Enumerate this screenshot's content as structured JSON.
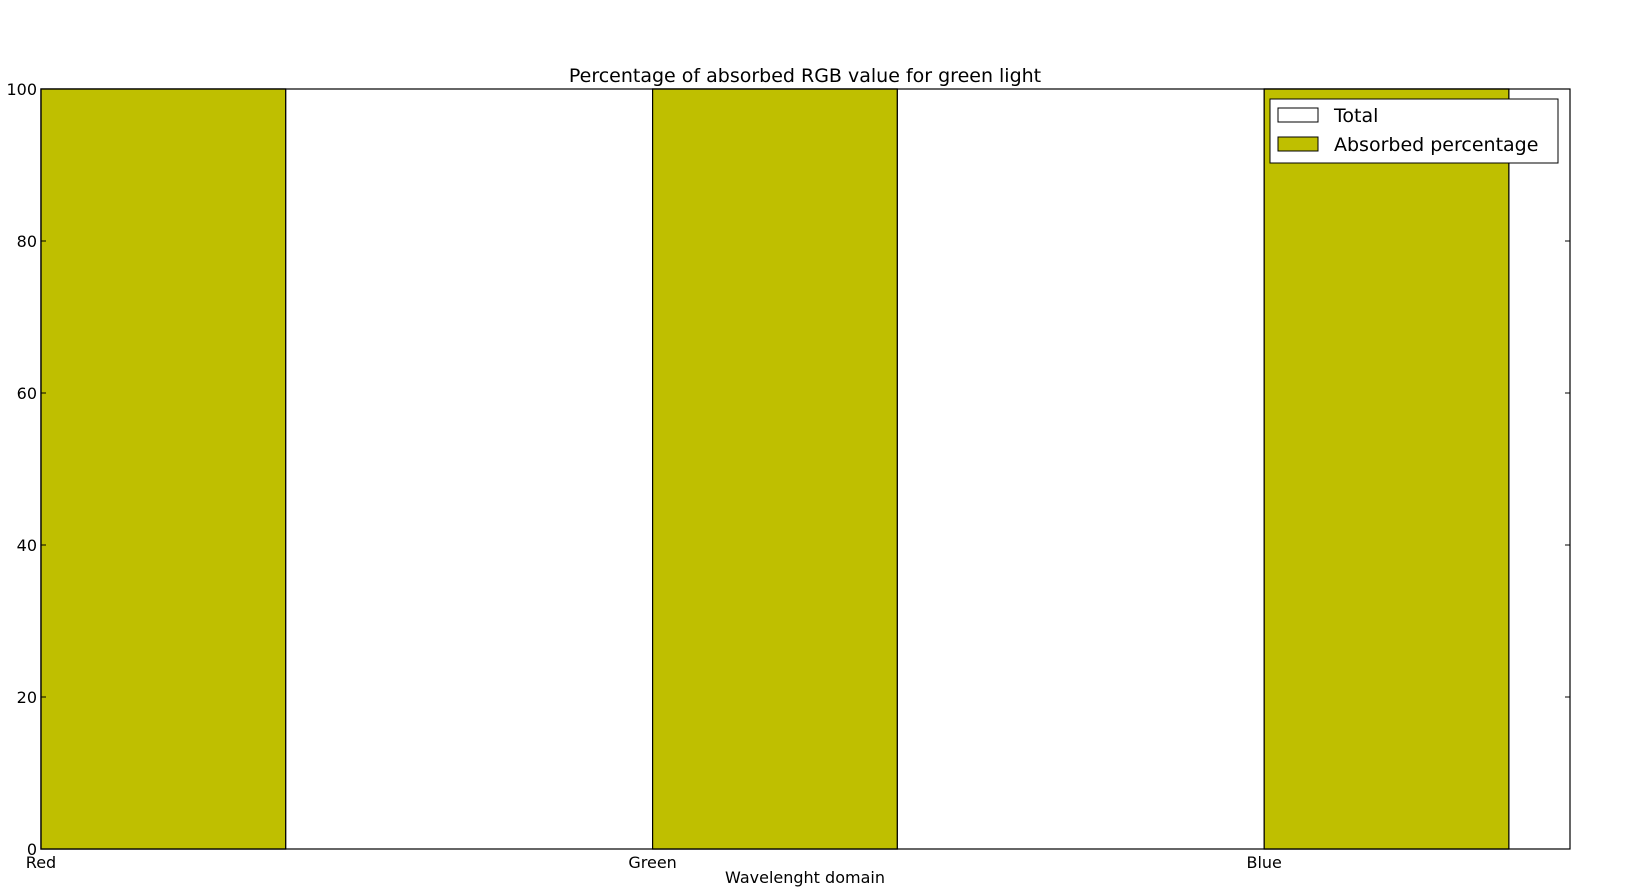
{
  "chart_data": {
    "type": "bar",
    "title": "Percentage of absorbed RGB value for green light",
    "xlabel": "Wavelenght domain",
    "ylabel": "",
    "categories": [
      "Red",
      "Green",
      "Blue"
    ],
    "ylim": [
      0,
      100
    ],
    "yticks": [
      0,
      20,
      40,
      60,
      80,
      100
    ],
    "grid": false,
    "legend_position": "top-right",
    "series": [
      {
        "name": "Total",
        "values": [
          100,
          100,
          100
        ],
        "color": "#ffffff"
      },
      {
        "name": "Absorbed percentage",
        "values": [
          100,
          100,
          100
        ],
        "color": "#bfbf00"
      }
    ]
  }
}
